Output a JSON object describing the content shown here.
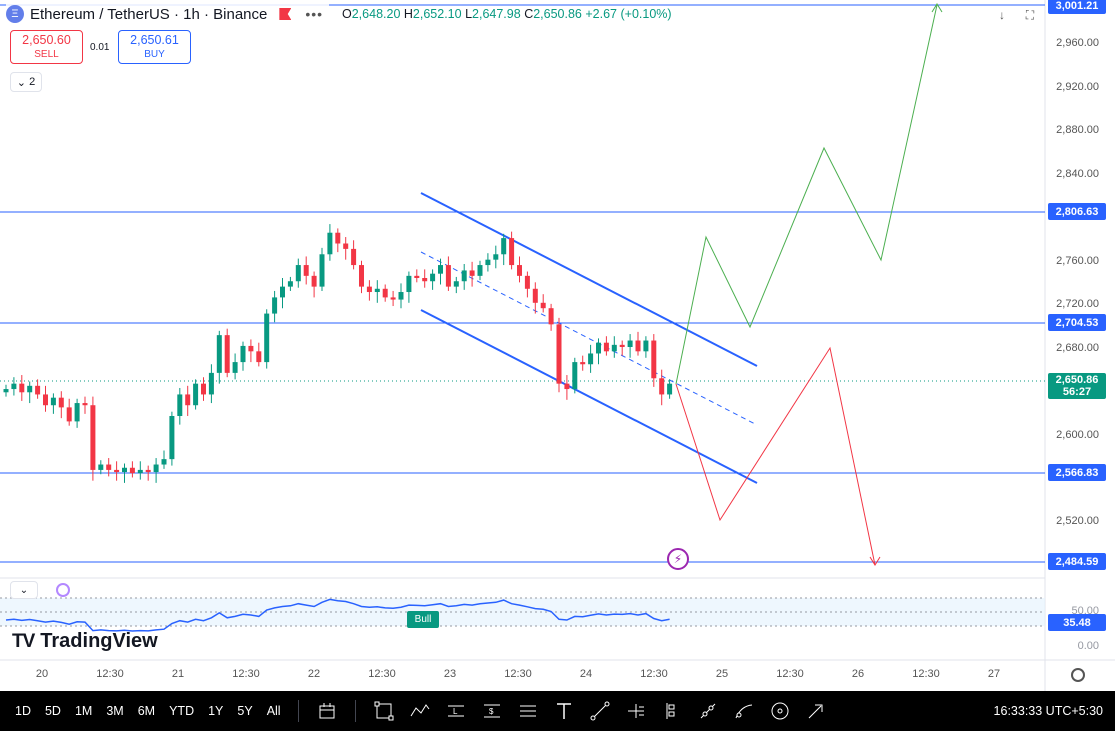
{
  "header": {
    "symbol": "Ethereum / TetherUS · 1h · Binance",
    "ohlc": {
      "o_label": "O",
      "o": "2,648.20",
      "h_label": "H",
      "h": "2,652.10",
      "l_label": "L",
      "l": "2,647.98",
      "c_label": "C",
      "c": "2,650.86",
      "change": "+2.67 (+0.10%)"
    },
    "more_icon": "more-dots-icon"
  },
  "trade": {
    "sell_price": "2,650.60",
    "sell_label": "SELL",
    "spread": "0.01",
    "buy_price": "2,650.61",
    "buy_label": "BUY"
  },
  "indicator_toggle": "2",
  "price_axis": [
    "2,960.00",
    "2,920.00",
    "2,880.00",
    "2,840.00",
    "2,760.00",
    "2,720.00",
    "2,680.00",
    "2,600.00",
    "2,520.00"
  ],
  "price_tags": {
    "top": "3,001.21",
    "r1": "2,806.63",
    "r2": "2,704.53",
    "s1": "2,566.83",
    "s2": "2,484.59"
  },
  "current": {
    "price": "2,650.86",
    "countdown": "56:27"
  },
  "rsi": {
    "value": "35.48",
    "axis_mid": "50.00",
    "axis_low": "0.00",
    "bull_label": "Bull"
  },
  "time_axis": [
    "20",
    "12:30",
    "21",
    "12:30",
    "22",
    "12:30",
    "23",
    "12:30",
    "24",
    "12:30",
    "25",
    "12:30",
    "26",
    "12:30",
    "27"
  ],
  "logo": "TradingView",
  "toolbar": {
    "timeframes": [
      "1D",
      "5D",
      "1M",
      "3M",
      "6M",
      "YTD",
      "1Y",
      "5Y",
      "All"
    ],
    "clock": "16:33:33 UTC+5:30"
  },
  "colors": {
    "up": "#089981",
    "down": "#f23645",
    "line": "#2962ff",
    "rsi": "#2962ff"
  },
  "chart_data": {
    "type": "candlestick",
    "title": "Ethereum / TetherUS · 1h · Binance",
    "ylim": [
      2480,
      3005
    ],
    "x": [
      "20",
      "12:30",
      "21",
      "12:30",
      "22",
      "12:30",
      "23",
      "12:30",
      "24",
      "12:30",
      "25",
      "12:30",
      "26",
      "12:30",
      "27"
    ],
    "horizontal_levels": [
      3001.21,
      2806.63,
      2704.53,
      2566.83,
      2484.59
    ],
    "last_price": 2650.86,
    "candles_close_series": [
      2645,
      2650,
      2642,
      2648,
      2640,
      2630,
      2637,
      2628,
      2615,
      2632,
      2630,
      2570,
      2575,
      2570,
      2568,
      2572,
      2567,
      2570,
      2568,
      2575,
      2580,
      2620,
      2640,
      2630,
      2650,
      2640,
      2660,
      2695,
      2660,
      2670,
      2685,
      2680,
      2670,
      2715,
      2730,
      2740,
      2745,
      2760,
      2750,
      2740,
      2770,
      2790,
      2780,
      2775,
      2760,
      2740,
      2735,
      2738,
      2730,
      2728,
      2735,
      2750,
      2748,
      2745,
      2752,
      2760,
      2740,
      2745,
      2755,
      2750,
      2760,
      2765,
      2770,
      2785,
      2760,
      2750,
      2738,
      2725,
      2720,
      2705,
      2650,
      2645,
      2670,
      2668,
      2678,
      2688,
      2680,
      2686,
      2684,
      2690,
      2680,
      2690,
      2655,
      2640,
      2650
    ],
    "rsi_value": 35.48,
    "rsi_levels": [
      70,
      50,
      30
    ]
  }
}
